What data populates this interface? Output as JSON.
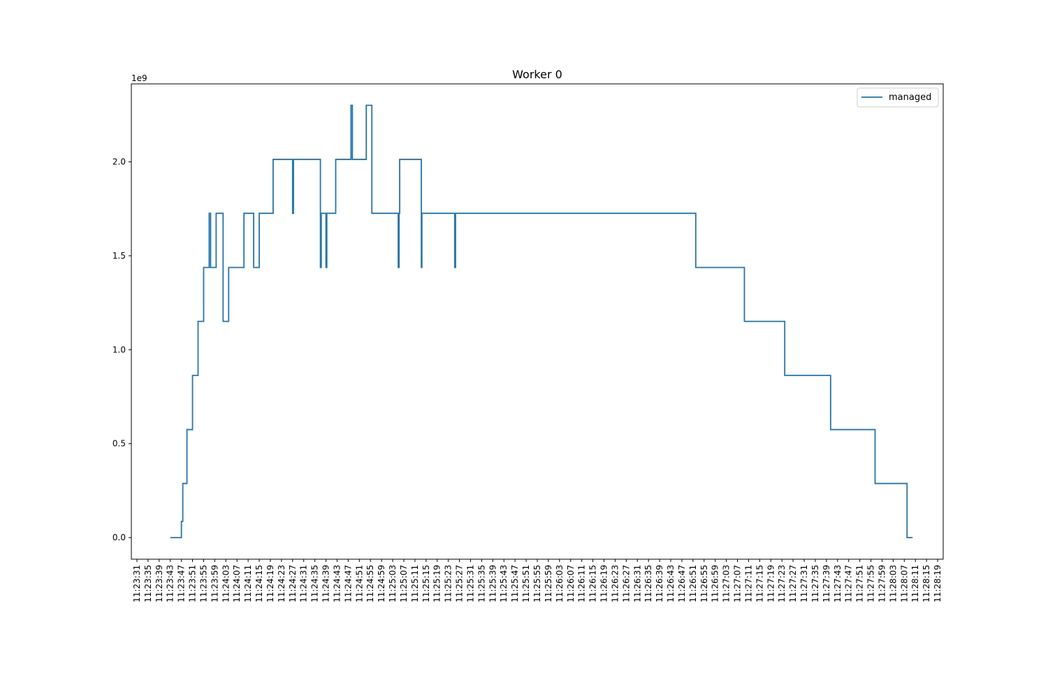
{
  "chart_data": {
    "type": "line",
    "title": "Worker 0",
    "xlabel": "",
    "ylabel": "",
    "y_offset_label": "1e9",
    "y_scale": 1000000000,
    "ylim": [
      -0.115,
      2.415
    ],
    "yticks": [
      0.0,
      0.5,
      1.0,
      1.5,
      2.0
    ],
    "ytick_labels": [
      "0.0",
      "0.5",
      "1.0",
      "1.5",
      "2.0"
    ],
    "xlim": [
      "11:23:29",
      "11:28:21"
    ],
    "xtick_labels": [
      "11:23:31",
      "11:23:35",
      "11:23:39",
      "11:23:43",
      "11:23:47",
      "11:23:51",
      "11:23:55",
      "11:23:59",
      "11:24:03",
      "11:24:07",
      "11:24:11",
      "11:24:15",
      "11:24:19",
      "11:24:23",
      "11:24:27",
      "11:24:31",
      "11:24:35",
      "11:24:39",
      "11:24:43",
      "11:24:47",
      "11:24:51",
      "11:24:55",
      "11:24:59",
      "11:25:03",
      "11:25:07",
      "11:25:11",
      "11:25:15",
      "11:25:19",
      "11:25:23",
      "11:25:27",
      "11:25:31",
      "11:25:35",
      "11:25:39",
      "11:25:43",
      "11:25:47",
      "11:25:51",
      "11:25:55",
      "11:25:59",
      "11:26:03",
      "11:26:07",
      "11:26:11",
      "11:26:15",
      "11:26:19",
      "11:26:23",
      "11:26:27",
      "11:26:31",
      "11:26:35",
      "11:26:39",
      "11:26:43",
      "11:26:47",
      "11:26:51",
      "11:26:55",
      "11:26:59",
      "11:27:03",
      "11:27:07",
      "11:27:11",
      "11:27:15",
      "11:27:19",
      "11:27:23",
      "11:27:27",
      "11:27:31",
      "11:27:35",
      "11:27:39",
      "11:27:43",
      "11:27:47",
      "11:27:51",
      "11:27:55",
      "11:27:59",
      "11:28:03",
      "11:28:07",
      "11:28:11",
      "11:28:15",
      "11:28:19"
    ],
    "legend_position": "top-right",
    "grid": false,
    "series": [
      {
        "name": "managed",
        "color": "#1f77b4",
        "step": "post",
        "x": [
          "11:23:43",
          "11:23:47",
          "11:23:47.5",
          "11:23:49",
          "11:23:51",
          "11:23:53",
          "11:23:55",
          "11:23:57",
          "11:23:57.5",
          "11:23:59.5",
          "11:24:02",
          "11:24:04",
          "11:24:09.5",
          "11:24:13",
          "11:24:15",
          "11:24:20",
          "11:24:27",
          "11:24:27.3",
          "11:24:37",
          "11:24:37.3",
          "11:24:39",
          "11:24:39.3",
          "11:24:42.5",
          "11:24:48",
          "11:24:48.5",
          "11:24:49.5",
          "11:24:53.5",
          "11:24:54",
          "11:24:55.5",
          "11:25:05",
          "11:25:05.3",
          "11:25:05.5",
          "11:25:13.3",
          "11:25:13.5",
          "11:25:25.3",
          "11:25:25.6",
          "11:26:52",
          "11:27:09.5",
          "11:27:24",
          "11:27:40.5",
          "11:27:56.5",
          "11:28:08",
          "11:28:10"
        ],
        "y": [
          0.0,
          0.086,
          0.288,
          0.575,
          0.863,
          1.151,
          1.438,
          1.726,
          1.438,
          1.726,
          1.151,
          1.438,
          1.726,
          1.438,
          1.726,
          2.013,
          1.726,
          2.013,
          1.438,
          1.726,
          1.438,
          1.726,
          2.013,
          2.301,
          2.013,
          2.013,
          2.301,
          2.301,
          1.726,
          1.438,
          1.726,
          2.013,
          1.438,
          1.726,
          1.438,
          1.726,
          1.438,
          1.151,
          0.863,
          0.575,
          0.288,
          0.0,
          0.0
        ]
      }
    ]
  }
}
